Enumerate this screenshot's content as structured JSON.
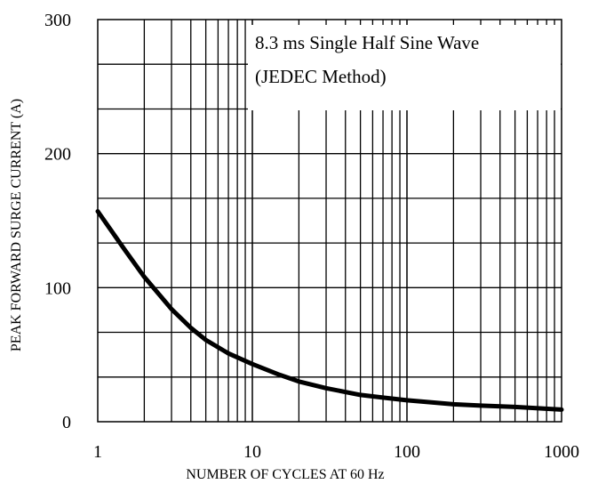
{
  "chart_data": {
    "type": "line",
    "xlabel": "NUMBER OF CYCLES AT 60 Hz",
    "ylabel": "PEAK FORWARD SURGE CURRENT (A)",
    "x_scale": "log",
    "xlim": [
      1,
      1000
    ],
    "ylim": [
      0,
      300
    ],
    "x_ticks": [
      1,
      10,
      100,
      1000
    ],
    "x_tick_labels": [
      "1",
      "10",
      "100",
      "1000"
    ],
    "y_ticks": [
      0,
      100,
      200,
      300
    ],
    "y_tick_labels": [
      "0",
      "100",
      "200",
      "300"
    ],
    "y_minor_gridlines": [
      33.3,
      66.7,
      133.3,
      166.7,
      233.3,
      266.7
    ],
    "grid": true,
    "annotation": {
      "line1": "8.3 ms Single Half Sine Wave",
      "line2": "(JEDEC Method)",
      "placement": "top-right"
    },
    "series": [
      {
        "x": [
          1,
          1.5,
          2,
          3,
          4,
          5,
          7,
          10,
          15,
          20,
          30,
          50,
          70,
          100,
          200,
          300,
          500,
          1000
        ],
        "y": [
          157,
          128,
          108,
          84,
          70,
          61,
          51,
          43,
          35,
          30,
          25,
          20,
          18,
          16,
          13,
          12,
          11,
          9
        ],
        "color": "#000000"
      }
    ]
  }
}
